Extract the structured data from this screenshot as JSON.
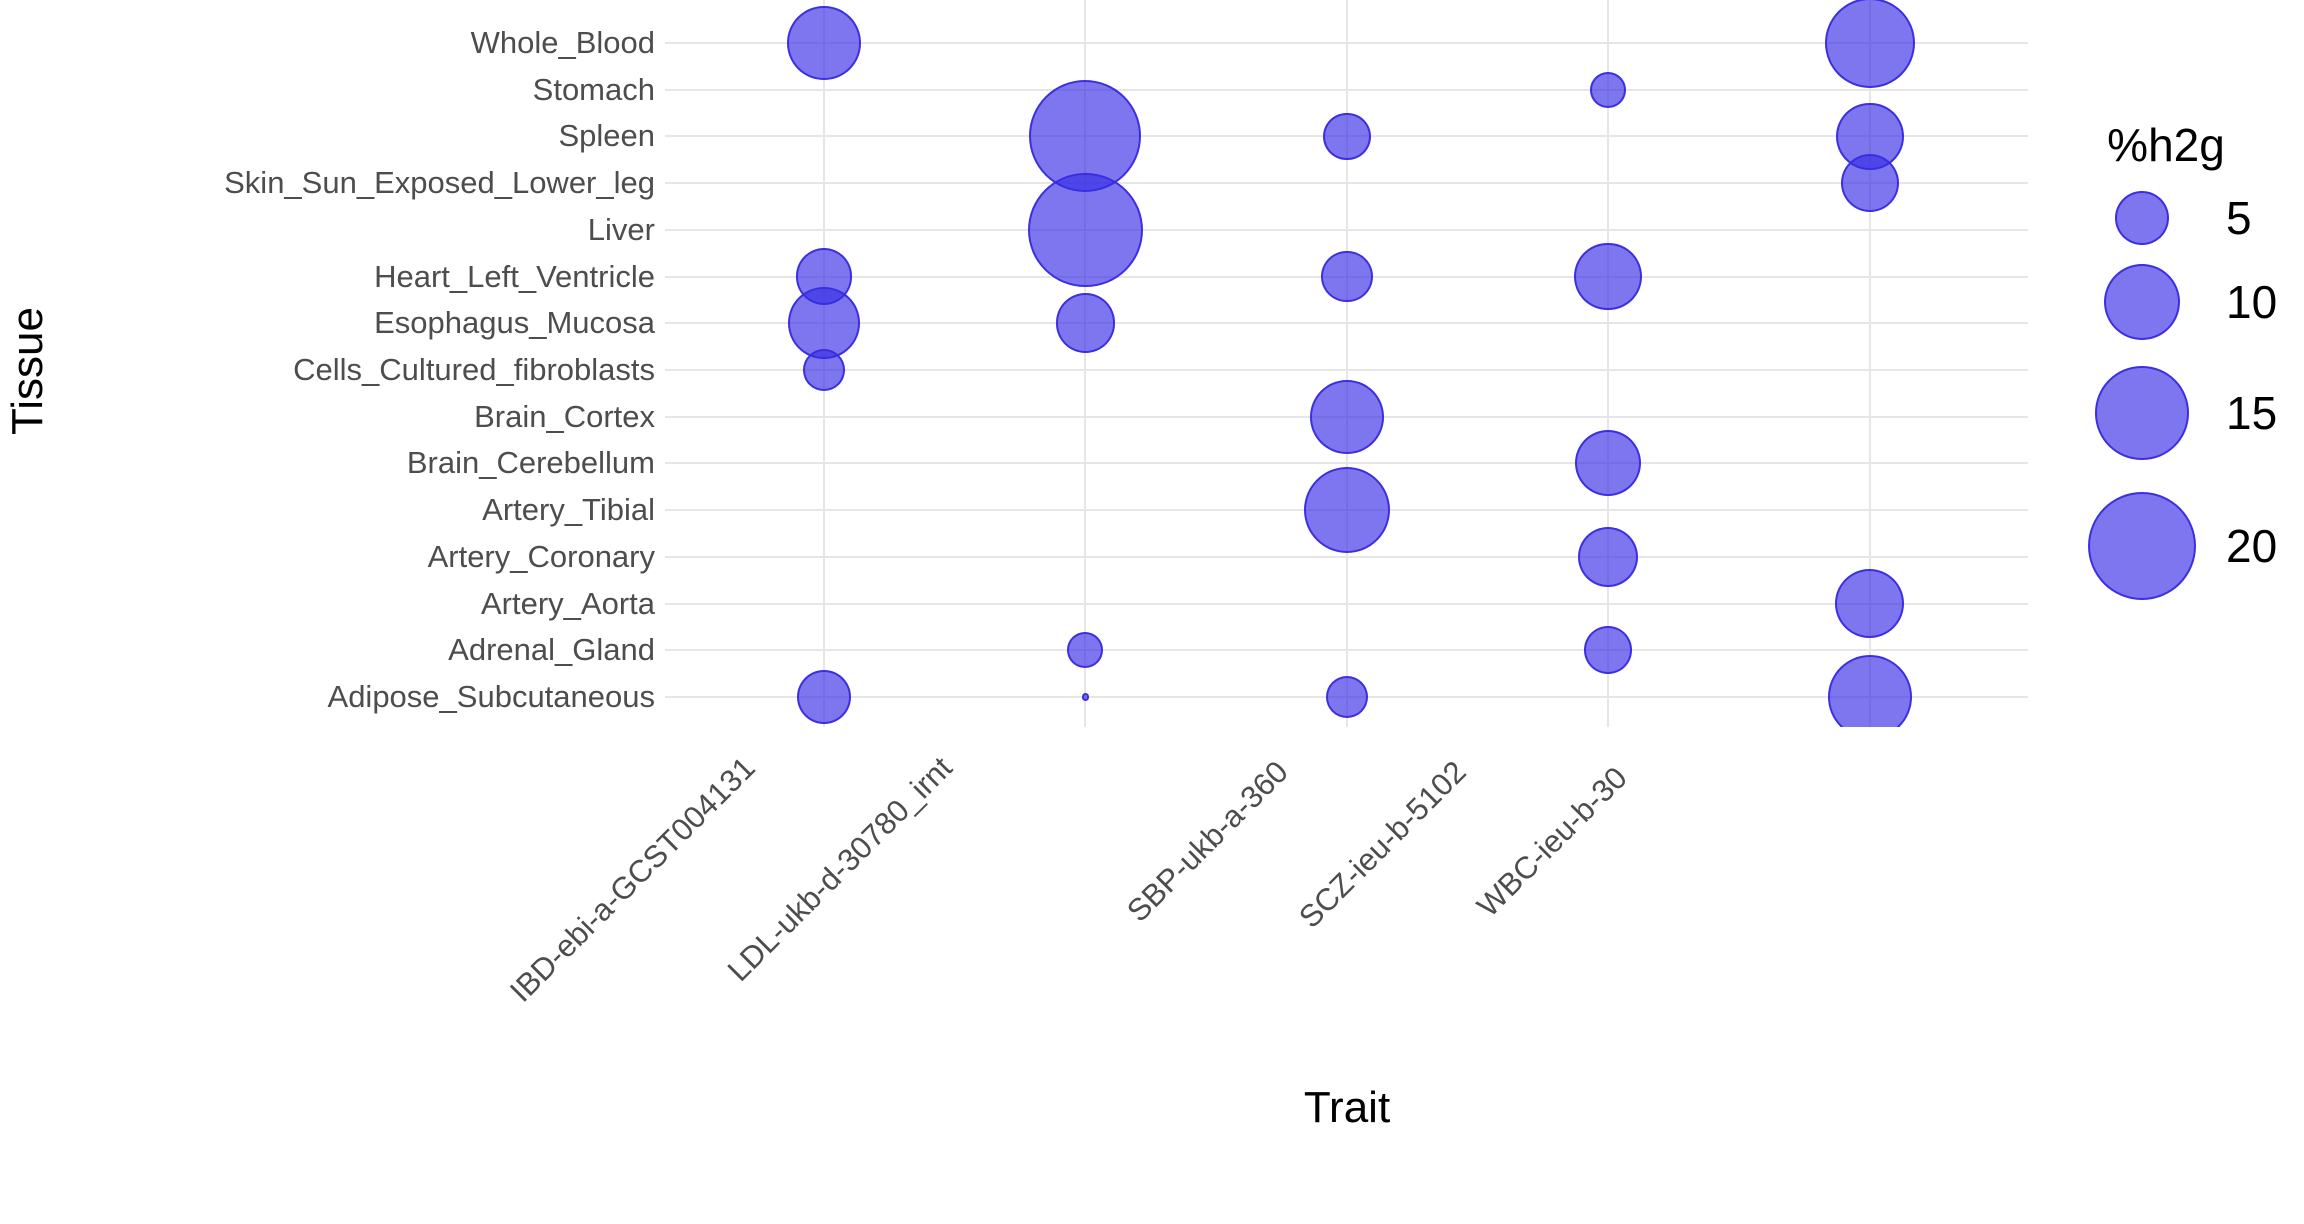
{
  "colors": {
    "background": "#ffffff",
    "bubble_fill": "rgba(55,44,229,0.65)",
    "bubble_stroke": "rgba(58,44,226,0.95)",
    "gridline": "#e6e6e6",
    "tick_label": "#4d4d4d",
    "axis_title": "#000000",
    "legend_text": "#000000"
  },
  "chart_data": {
    "type": "bubble",
    "xlabel": "Trait",
    "ylabel": "Tissue",
    "x_categories": [
      "IBD-ebi-a-GCST004131",
      "LDL-ukb-d-30780_irnt",
      "SBP-ukb-a-360",
      "SCZ-ieu-b-5102",
      "WBC-ieu-b-30"
    ],
    "y_categories": [
      "Whole_Blood",
      "Stomach",
      "Spleen",
      "Skin_Sun_Exposed_Lower_leg",
      "Liver",
      "Heart_Left_Ventricle",
      "Esophagus_Mucosa",
      "Cells_Cultured_fibroblasts",
      "Brain_Cortex",
      "Brain_Cerebellum",
      "Artery_Tibial",
      "Artery_Coronary",
      "Artery_Aorta",
      "Adrenal_Gland",
      "Adipose_Subcutaneous"
    ],
    "legend": {
      "title": "%h2g",
      "values": [
        5,
        10,
        15,
        20
      ],
      "position": "right",
      "size_scale": "area proportional to %h2g"
    },
    "points": [
      {
        "trait": "IBD-ebi-a-GCST004131",
        "tissue": "Whole_Blood",
        "h2g": 9.3
      },
      {
        "trait": "IBD-ebi-a-GCST004131",
        "tissue": "Heart_Left_Ventricle",
        "h2g": 5.5
      },
      {
        "trait": "IBD-ebi-a-GCST004131",
        "tissue": "Esophagus_Mucosa",
        "h2g": 8.8
      },
      {
        "trait": "IBD-ebi-a-GCST004131",
        "tissue": "Cells_Cultured_fibroblasts",
        "h2g": 3.0
      },
      {
        "trait": "IBD-ebi-a-GCST004131",
        "tissue": "Adipose_Subcutaneous",
        "h2g": 5.0
      },
      {
        "trait": "LDL-ukb-d-30780_irnt",
        "tissue": "Spleen",
        "h2g": 21.5
      },
      {
        "trait": "LDL-ukb-d-30780_irnt",
        "tissue": "Liver",
        "h2g": 22.5
      },
      {
        "trait": "LDL-ukb-d-30780_irnt",
        "tissue": "Esophagus_Mucosa",
        "h2g": 6.1
      },
      {
        "trait": "LDL-ukb-d-30780_irnt",
        "tissue": "Adrenal_Gland",
        "h2g": 2.2
      },
      {
        "trait": "LDL-ukb-d-30780_irnt",
        "tissue": "Adipose_Subcutaneous",
        "h2g": 0.1
      },
      {
        "trait": "SBP-ukb-a-360",
        "tissue": "Spleen",
        "h2g": 3.9
      },
      {
        "trait": "SBP-ukb-a-360",
        "tissue": "Heart_Left_Ventricle",
        "h2g": 4.6
      },
      {
        "trait": "SBP-ukb-a-360",
        "tissue": "Brain_Cortex",
        "h2g": 9.3
      },
      {
        "trait": "SBP-ukb-a-360",
        "tissue": "Artery_Tibial",
        "h2g": 12.7
      },
      {
        "trait": "SBP-ukb-a-360",
        "tissue": "Adipose_Subcutaneous",
        "h2g": 3.0
      },
      {
        "trait": "SCZ-ieu-b-5102",
        "tissue": "Stomach",
        "h2g": 2.2
      },
      {
        "trait": "SCZ-ieu-b-5102",
        "tissue": "Heart_Left_Ventricle",
        "h2g": 7.9
      },
      {
        "trait": "SCZ-ieu-b-5102",
        "tissue": "Brain_Cerebellum",
        "h2g": 7.5
      },
      {
        "trait": "SCZ-ieu-b-5102",
        "tissue": "Artery_Coronary",
        "h2g": 6.2
      },
      {
        "trait": "SCZ-ieu-b-5102",
        "tissue": "Adrenal_Gland",
        "h2g": 3.9
      },
      {
        "trait": "WBC-ieu-b-30",
        "tissue": "Whole_Blood",
        "h2g": 13.9
      },
      {
        "trait": "WBC-ieu-b-30",
        "tissue": "Spleen",
        "h2g": 7.9
      },
      {
        "trait": "WBC-ieu-b-30",
        "tissue": "Skin_Sun_Exposed_Lower_leg",
        "h2g": 5.8
      },
      {
        "trait": "WBC-ieu-b-30",
        "tissue": "Artery_Aorta",
        "h2g": 8.2
      },
      {
        "trait": "WBC-ieu-b-30",
        "tissue": "Adipose_Subcutaneous",
        "h2g": 12.1
      }
    ]
  }
}
